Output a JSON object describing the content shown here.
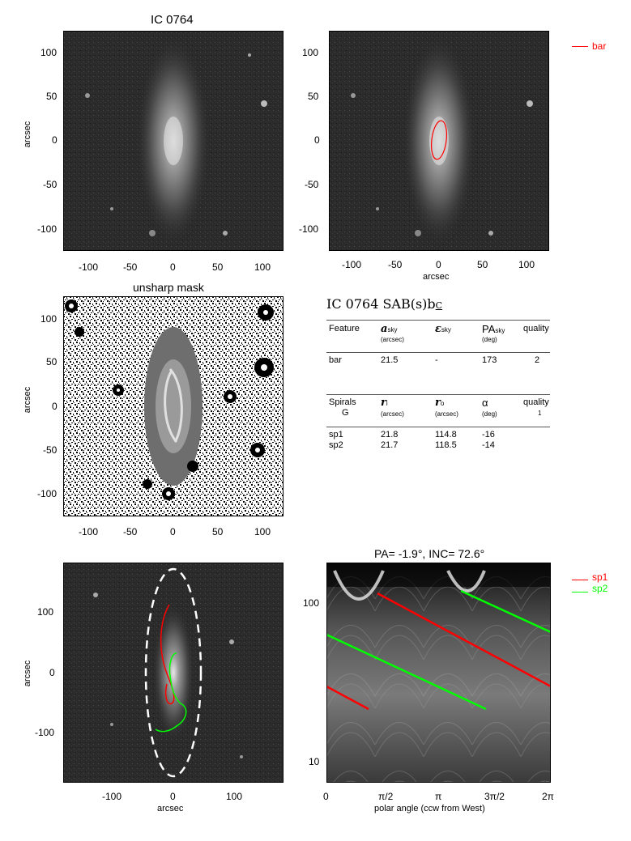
{
  "panels": {
    "p1": {
      "title": "IC 0764",
      "ylabel": "arcsec",
      "xlabel": "",
      "xticks": [
        "-100",
        "-50",
        "0",
        "50",
        "100"
      ],
      "yticks": [
        "100",
        "50",
        "0",
        "-50",
        "-100"
      ]
    },
    "p2": {
      "title": "",
      "ylabel": "",
      "xlabel": "arcsec",
      "xticks": [
        "-100",
        "-50",
        "0",
        "50",
        "100"
      ],
      "yticks": [
        "100",
        "50",
        "0",
        "-50",
        "-100"
      ],
      "legend": [
        {
          "label": "bar",
          "color": "#ff0000"
        }
      ]
    },
    "p3": {
      "title": "unsharp mask",
      "ylabel": "arcsec",
      "xlabel": "",
      "xticks": [
        "-100",
        "-50",
        "0",
        "50",
        "100"
      ],
      "yticks": [
        "100",
        "50",
        "0",
        "-50",
        "-100"
      ]
    },
    "p4": {
      "title": "",
      "ylabel": "arcsec",
      "xlabel": "arcsec",
      "xticks": [
        "-100",
        "0",
        "100"
      ],
      "yticks": [
        "100",
        "0",
        "-100"
      ]
    },
    "p5": {
      "title": "PA= -1.9°, INC= 72.6°",
      "xlabel": "polar angle (ccw from West)",
      "xticks": [
        "0",
        "π/2",
        "π",
        "3π/2",
        "2π"
      ],
      "yticks": [
        "100",
        "10"
      ],
      "legend": [
        {
          "label": "sp1",
          "color": "#ff0000"
        },
        {
          "label": "sp2",
          "color": "#00ff00"
        }
      ]
    }
  },
  "table": {
    "heading": "IC 0764  SAB(s)b",
    "heading_sub": "C",
    "bar_header": {
      "c1": "Feature",
      "c2": "a",
      "c2sub": "sky",
      "c2unit": "(arcsec)",
      "c3": "ε",
      "c3sub": "sky",
      "c4": "PA",
      "c4sub": "sky",
      "c4unit": "(deg)",
      "c5": "quality"
    },
    "bar_row": {
      "c1": "bar",
      "c2": "21.5",
      "c3": "-",
      "c4": "173",
      "c5": "2"
    },
    "sp_header": {
      "c1": "Spirals",
      "c1b": "G",
      "c2": "r",
      "c2sub": "i",
      "c2unit": "(arcsec)",
      "c3": "r",
      "c3sub": "o",
      "c3unit": "(arcsec)",
      "c4": "α",
      "c4unit": "(deg)",
      "c5": "quality",
      "c5b": "1"
    },
    "sp_rows": [
      {
        "c1": "sp1",
        "c2": "21.8",
        "c3": "114.8",
        "c4": "-16"
      },
      {
        "c1": "sp2",
        "c2": "21.7",
        "c3": "118.5",
        "c4": "-14"
      }
    ]
  },
  "colors": {
    "bar": "#ff0000",
    "sp1": "#ff0000",
    "sp2": "#00ff00",
    "ellipse": "#ffffff"
  }
}
